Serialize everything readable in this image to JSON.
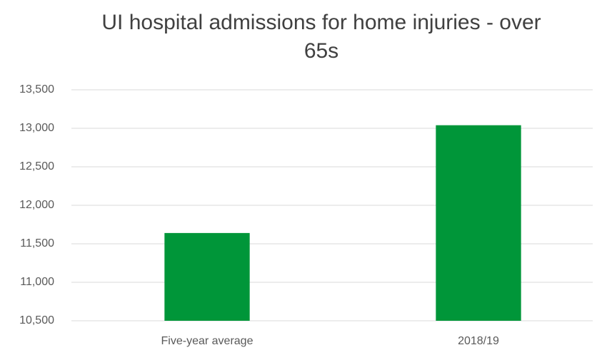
{
  "chart_data": {
    "type": "bar",
    "title": "UI hospital admissions for home injuries - over 65s",
    "categories": [
      "Five-year average",
      "2018/19"
    ],
    "values": [
      11640,
      13040
    ],
    "color": "#009639",
    "ylim": [
      10500,
      13500
    ],
    "yticks": [
      {
        "value": 10500,
        "label": "10,500"
      },
      {
        "value": 11000,
        "label": "11,000"
      },
      {
        "value": 11500,
        "label": "11,500"
      },
      {
        "value": 12000,
        "label": "12,000"
      },
      {
        "value": 12500,
        "label": "12,500"
      },
      {
        "value": 13000,
        "label": "13,000"
      },
      {
        "value": 13500,
        "label": "13,500"
      }
    ],
    "grid": true
  }
}
